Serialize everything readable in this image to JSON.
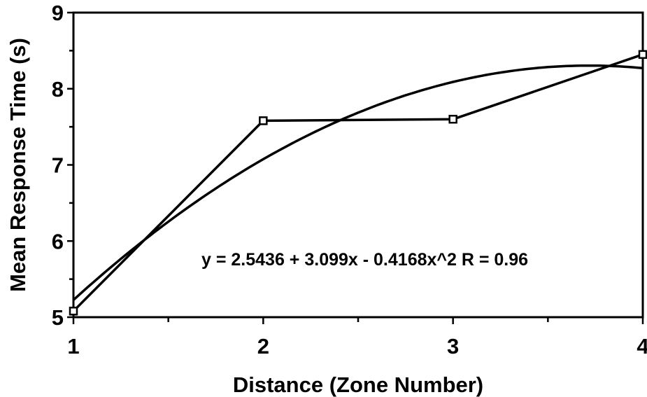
{
  "chart_data": {
    "type": "line",
    "xlabel": "Distance (Zone Number)",
    "ylabel": "Mean Response Time (s)",
    "xlim": [
      1,
      4
    ],
    "ylim": [
      5,
      9
    ],
    "x_ticks": [
      1,
      2,
      3,
      4
    ],
    "y_ticks": [
      5,
      6,
      7,
      8,
      9
    ],
    "x_tick_labels": [
      "1",
      "2",
      "3",
      "4"
    ],
    "y_tick_labels": [
      "5",
      "6",
      "7",
      "8",
      "9"
    ],
    "grid": false,
    "series": [
      {
        "marker": "square",
        "x": [
          1,
          2,
          3,
          4
        ],
        "y": [
          5.08,
          7.58,
          7.6,
          8.45
        ]
      }
    ],
    "fit": {
      "equation": "y = 2.5436 + 3.099x - 0.4168x^2   R = 0.96",
      "coefficients": [
        2.5436,
        3.099,
        -0.4168
      ]
    }
  }
}
